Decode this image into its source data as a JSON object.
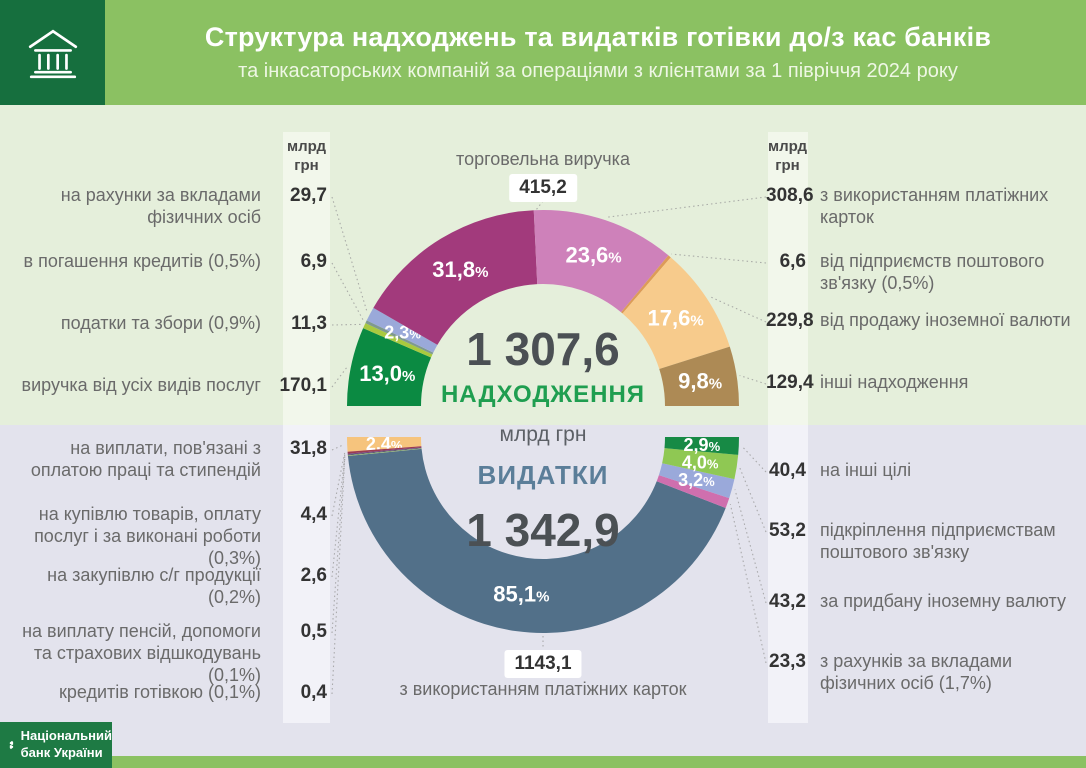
{
  "header": {
    "title": "Структура надходжень та видатків готівки до/з кас банків",
    "subtitle": "та інкасаторських компаній за операціями з клієнтами за 1 півріччя 2024 року"
  },
  "footer": {
    "bank_name_line1": "Національний",
    "bank_name_line2": "банк України"
  },
  "chart_data": {
    "type": "pie",
    "subtype": "double-half-donut",
    "units": "млрд грн",
    "income": {
      "title": "НАДХОДЖЕННЯ",
      "total": "1 307,6",
      "segments": [
        {
          "id": "services_revenue",
          "label": "виручка від усіх видів послуг",
          "value": "170,1",
          "pct": 13.0,
          "pct_label": "13,0%",
          "color": "#0b8a42",
          "side": "left"
        },
        {
          "id": "taxes",
          "label": "податки та збори (0,9%)",
          "value": "11,3",
          "pct": 0.9,
          "pct_label": "",
          "color": "#a9c93f",
          "side": "left"
        },
        {
          "id": "loan_repayment",
          "label": "в погашення кредитів (0,5%)",
          "value": "6,9",
          "pct": 0.5,
          "pct_label": "",
          "color": "#7f998e",
          "side": "left"
        },
        {
          "id": "deposits_individuals",
          "label": "на рахунки за вкладами фізичних осіб",
          "value": "29,7",
          "pct": 2.3,
          "pct_label": "2,3%",
          "color": "#9aa9d9",
          "side": "left"
        },
        {
          "id": "trade_revenue",
          "label": "торговельна виручка",
          "value": "415,2",
          "pct": 31.8,
          "pct_label": "31,8%",
          "color": "#a23a7c",
          "side": "top"
        },
        {
          "id": "payment_cards_in",
          "label": "з використанням платіжних карток",
          "value": "308,6",
          "pct": 23.6,
          "pct_label": "23,6%",
          "color": "#ce81ba",
          "side": "right"
        },
        {
          "id": "postal_in",
          "label": "від підприємств поштового зв'язку (0,5%)",
          "value": "6,6",
          "pct": 0.5,
          "pct_label": "",
          "color": "#dd9b58",
          "side": "right"
        },
        {
          "id": "fx_sale",
          "label": "від продажу іноземної валюти",
          "value": "229,8",
          "pct": 17.6,
          "pct_label": "17,6%",
          "color": "#f7cb8c",
          "side": "right"
        },
        {
          "id": "other_in",
          "label": "інші надходження",
          "value": "129,4",
          "pct": 9.8,
          "pct_label": "9,8%",
          "color": "#ad8a55",
          "side": "right"
        }
      ]
    },
    "expenses": {
      "title": "ВИДАТКИ",
      "total": "1 342,9",
      "segments": [
        {
          "id": "salary_payments",
          "label": "на виплати, пов'язані з оплатою праці та стипендій",
          "value": "31,8",
          "pct": 2.4,
          "pct_label": "2,4%",
          "color": "#f6c47d",
          "side": "left"
        },
        {
          "id": "goods_purchase",
          "label": "на купівлю товарів, оплату послуг і за виконані роботи (0,3%)",
          "value": "4,4",
          "pct": 0.3,
          "pct_label": "",
          "color": "#9c3a50",
          "side": "left"
        },
        {
          "id": "agri_purchase",
          "label": "на закупівлю с/г продукції (0,2%)",
          "value": "2,6",
          "pct": 0.2,
          "pct_label": "",
          "color": "#74487f",
          "side": "left"
        },
        {
          "id": "pensions",
          "label": "на виплату пенсій, допомоги та страхових відшкодувань (0,1%)",
          "value": "0,5",
          "pct": 0.1,
          "pct_label": "",
          "color": "#46705f",
          "side": "left"
        },
        {
          "id": "cash_loans",
          "label": "кредитів готівкою (0,1%)",
          "value": "0,4",
          "pct": 0.1,
          "pct_label": "",
          "color": "#b0cf63",
          "side": "left"
        },
        {
          "id": "payment_cards_out",
          "label": "з використанням платіжних карток",
          "value": "1143,1",
          "pct": 85.1,
          "pct_label": "85,1%",
          "color": "#527089",
          "side": "bottom"
        },
        {
          "id": "deposits_out",
          "label": "з рахунків за вкладами фізичних осіб (1,7%)",
          "value": "23,3",
          "pct": 1.7,
          "pct_label": "",
          "color": "#cf6fae",
          "side": "right"
        },
        {
          "id": "fx_buy",
          "label": "за придбану іноземну валюту",
          "value": "43,2",
          "pct": 3.2,
          "pct_label": "3,2%",
          "color": "#9aa9da",
          "side": "right"
        },
        {
          "id": "postal_out",
          "label": "підкріплення підприємствам поштового зв'язку",
          "value": "53,2",
          "pct": 4.0,
          "pct_label": "4,0%",
          "color": "#8fc853",
          "side": "right"
        },
        {
          "id": "other_out",
          "label": "на інші цілі",
          "value": "40,4",
          "pct": 2.9,
          "pct_label": "2,9%",
          "color": "#178a45",
          "side": "right"
        }
      ]
    }
  }
}
